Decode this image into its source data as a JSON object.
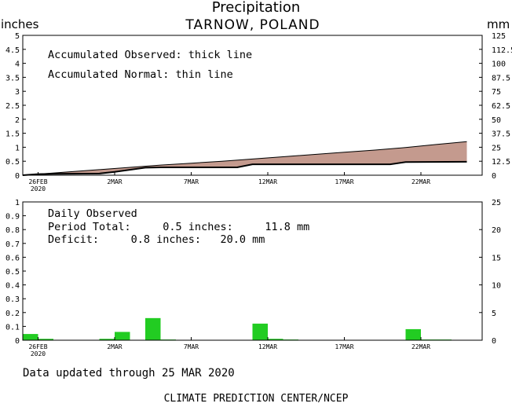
{
  "header": {
    "title": "Precipitation",
    "location": "TARNOW, POLAND",
    "left_unit": "inches",
    "right_unit": "mm"
  },
  "footer": {
    "updated": "Data updated through 25 MAR 2020",
    "credit": "CLIMATE PREDICTION CENTER/NCEP"
  },
  "colors": {
    "observed_fill": "#c49a8e",
    "bar": "#22cc22",
    "ink": "#000000"
  },
  "chart_data": [
    {
      "type": "area",
      "panel": "accumulated",
      "annotations": [
        "Accumulated Observed: thick line",
        "Accumulated Normal: thin line"
      ],
      "x_ticks": [
        {
          "day": 0,
          "label": "26FEB",
          "sub": "2020"
        },
        {
          "day": 5,
          "label": "2MAR"
        },
        {
          "day": 10,
          "label": "7MAR"
        },
        {
          "day": 15,
          "label": "12MAR"
        },
        {
          "day": 20,
          "label": "17MAR"
        },
        {
          "day": 25,
          "label": "22MAR"
        }
      ],
      "x_range": [
        -1,
        29
      ],
      "y_left": {
        "unit": "inches",
        "ylim": [
          0,
          5
        ],
        "ticks": [
          "0",
          "0.5",
          "1",
          "1.5",
          "2",
          "2.5",
          "3",
          "3.5",
          "4",
          "4.5",
          "5"
        ]
      },
      "y_right": {
        "unit": "mm",
        "ylim": [
          0,
          125
        ],
        "ticks": [
          "0",
          "12.5",
          "25",
          "37.5",
          "50",
          "62.5",
          "75",
          "87.5",
          "100",
          "112.5",
          "125"
        ]
      },
      "series": [
        {
          "role": "normal",
          "style": "thin",
          "x": [
            0,
            2,
            4,
            6,
            8,
            10,
            12,
            14,
            16,
            18,
            20,
            22,
            24,
            26,
            28
          ],
          "values": [
            0.04,
            0.12,
            0.2,
            0.28,
            0.36,
            0.43,
            0.5,
            0.58,
            0.66,
            0.74,
            0.82,
            0.9,
            0.99,
            1.1,
            1.2
          ]
        },
        {
          "role": "observed",
          "style": "thick",
          "x": [
            -1,
            0,
            1,
            4,
            5,
            7,
            8,
            13,
            14,
            23,
            24,
            28
          ],
          "values": [
            0.0,
            0.04,
            0.05,
            0.06,
            0.12,
            0.27,
            0.28,
            0.28,
            0.39,
            0.39,
            0.47,
            0.48
          ]
        }
      ]
    },
    {
      "type": "bar",
      "panel": "daily",
      "annotations": {
        "title": "Daily Observed",
        "period_total": "Period Total:     0.5 inches:     11.8 mm",
        "deficit": "Deficit:     0.8 inches:   20.0 mm"
      },
      "x_range": [
        -1,
        29
      ],
      "y_left": {
        "unit": "inches",
        "ylim": [
          0,
          1
        ],
        "ticks": [
          "0",
          "0.1",
          "0.2",
          "0.3",
          "0.4",
          "0.5",
          "0.6",
          "0.7",
          "0.8",
          "0.9",
          "1"
        ]
      },
      "y_right": {
        "unit": "mm",
        "ylim": [
          0,
          25
        ],
        "ticks": [
          "0",
          "5",
          "10",
          "15",
          "20",
          "25"
        ]
      },
      "bars": {
        "x": [
          -1,
          0,
          4,
          5,
          7,
          8,
          14,
          15,
          16,
          24,
          25,
          26
        ],
        "values": [
          0.045,
          0.01,
          0.01,
          0.06,
          0.16,
          0.005,
          0.12,
          0.01,
          0.005,
          0.08,
          0.005,
          0.005
        ]
      }
    }
  ]
}
